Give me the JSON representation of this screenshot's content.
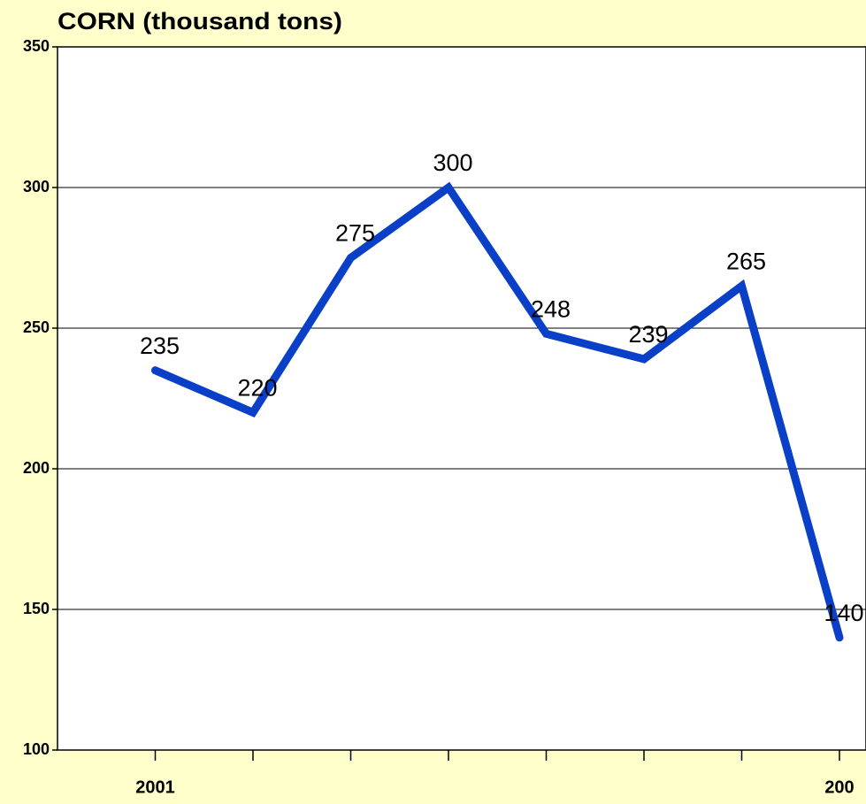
{
  "chart_data": {
    "type": "line",
    "title": "CORN (thousand tons)",
    "categories": [
      "2001",
      null,
      null,
      null,
      null,
      null,
      null,
      "200"
    ],
    "series": [
      {
        "name": "CORN",
        "color": "#0a3fc8",
        "values": [
          235,
          220,
          275,
          300,
          248,
          239,
          265,
          140
        ]
      }
    ],
    "ylim": [
      100,
      350
    ],
    "yticks": [
      100,
      150,
      200,
      250,
      300,
      350
    ],
    "grid": true
  }
}
